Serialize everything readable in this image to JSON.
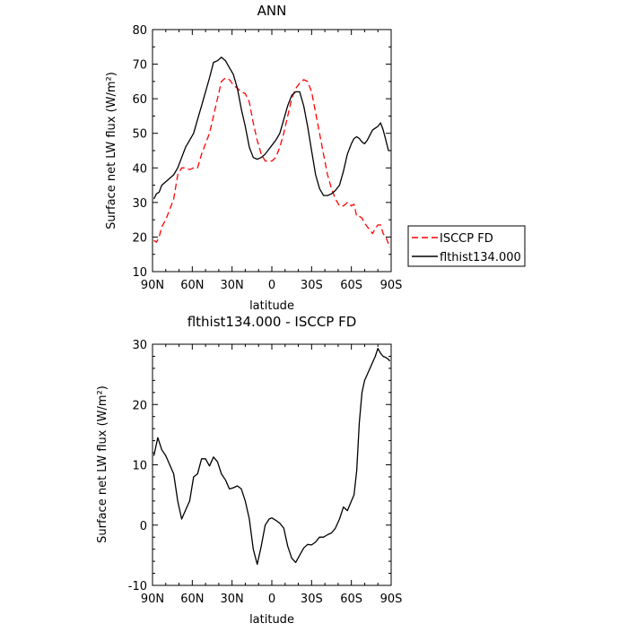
{
  "chart_data": [
    {
      "type": "line",
      "title": "ANN",
      "xlabel": "latitude",
      "ylabel": "Surface net LW flux (W/m²)",
      "xlim": [
        90,
        -90
      ],
      "ylim": [
        10,
        80
      ],
      "xticks": [
        "90N",
        "60N",
        "30N",
        "0",
        "30S",
        "60S",
        "90S"
      ],
      "yticks": [
        "10",
        "20",
        "30",
        "40",
        "50",
        "60",
        "70",
        "80"
      ],
      "legend_position": "right, outside plot",
      "series": [
        {
          "name": "ISCCP FD",
          "color": "#ff0000",
          "style": "dashed",
          "x": [
            89,
            87,
            85,
            83,
            80,
            77,
            74,
            71,
            68,
            65,
            62,
            59,
            56,
            53,
            50,
            47,
            44,
            41,
            38,
            35,
            32,
            29,
            26,
            23,
            20,
            17,
            14,
            11,
            8,
            5,
            2,
            0,
            -3,
            -6,
            -9,
            -12,
            -15,
            -18,
            -21,
            -24,
            -27,
            -30,
            -33,
            -36,
            -39,
            -42,
            -45,
            -48,
            -51,
            -54,
            -57,
            -60,
            -62,
            -64,
            -66,
            -68,
            -70,
            -72,
            -74,
            -76,
            -78,
            -80,
            -82,
            -84,
            -86,
            -88,
            -89
          ],
          "y": [
            19,
            18.5,
            20,
            23,
            25,
            28,
            31,
            38,
            40,
            40,
            39.5,
            40,
            40,
            44,
            47,
            50,
            55,
            60,
            65,
            66,
            65.5,
            64,
            63,
            62,
            61.5,
            59,
            53,
            48,
            44,
            42,
            42,
            42,
            43,
            46,
            50,
            55,
            60,
            63,
            64.5,
            65.5,
            65,
            62,
            56,
            50,
            44,
            38,
            34,
            31,
            29,
            29,
            30,
            29,
            29.5,
            26,
            26,
            25.5,
            24,
            23,
            22,
            21,
            22.5,
            23.5,
            23.5,
            21,
            20,
            18,
            17
          ]
        },
        {
          "name": "flthist134.000",
          "color": "#000000",
          "style": "solid",
          "x": [
            89,
            87,
            85,
            83,
            80,
            77,
            74,
            71,
            68,
            65,
            62,
            59,
            56,
            53,
            50,
            47,
            44,
            41,
            38,
            35,
            32,
            29,
            26,
            23,
            20,
            17,
            14,
            11,
            8,
            5,
            2,
            0,
            -3,
            -6,
            -9,
            -12,
            -15,
            -18,
            -21,
            -24,
            -27,
            -30,
            -33,
            -36,
            -39,
            -42,
            -45,
            -48,
            -51,
            -54,
            -57,
            -60,
            -62,
            -64,
            -66,
            -68,
            -70,
            -72,
            -74,
            -76,
            -78,
            -80,
            -82,
            -84,
            -86,
            -88,
            -89
          ],
          "y": [
            31,
            32.5,
            33,
            35,
            36,
            37,
            38,
            40,
            43,
            46,
            48,
            50,
            54,
            58,
            62,
            66,
            70.5,
            71,
            72,
            71,
            69,
            67,
            63,
            57,
            52,
            46,
            43,
            42.5,
            43,
            44,
            45.5,
            46.5,
            48,
            50,
            54,
            58,
            61,
            62,
            62,
            58,
            52,
            45,
            38,
            34,
            32,
            32,
            32.5,
            33.5,
            35,
            39,
            44,
            47,
            48.5,
            49,
            48.5,
            47.5,
            47,
            48,
            49.5,
            51,
            51.5,
            52,
            53,
            51,
            48,
            45,
            45
          ]
        }
      ]
    },
    {
      "type": "line",
      "title": "flthist134.000 - ISCCP FD",
      "xlabel": "latitude",
      "ylabel": "Surface net LW flux (W/m²)",
      "xlim": [
        90,
        -90
      ],
      "ylim": [
        -10,
        30
      ],
      "xticks": [
        "90N",
        "60N",
        "30N",
        "0",
        "30S",
        "60S",
        "90S"
      ],
      "yticks": [
        "-10",
        "0",
        "10",
        "20",
        "30"
      ],
      "series": [
        {
          "color": "#000000",
          "style": "solid",
          "x": [
            89,
            86,
            83,
            80,
            77,
            74,
            71,
            68,
            65,
            62,
            59,
            56,
            53,
            50,
            47,
            44,
            41,
            38,
            35,
            32,
            29,
            26,
            23,
            20,
            17,
            14,
            11,
            8,
            5,
            2,
            0,
            -3,
            -6,
            -9,
            -12,
            -15,
            -18,
            -21,
            -24,
            -27,
            -30,
            -33,
            -36,
            -39,
            -42,
            -45,
            -48,
            -51,
            -54,
            -57,
            -60,
            -62,
            -64,
            -66,
            -68,
            -70,
            -72,
            -74,
            -76,
            -78,
            -80,
            -82,
            -84,
            -86,
            -88,
            -89
          ],
          "y": [
            11.5,
            14.5,
            12.5,
            11.5,
            10,
            8.5,
            4,
            1,
            2.5,
            4,
            8,
            8.5,
            11,
            11,
            9.8,
            11.3,
            10.5,
            8.5,
            7.5,
            6,
            6.2,
            6.5,
            6,
            4,
            1,
            -4,
            -6.5,
            -3.5,
            0,
            1,
            1.2,
            0.8,
            0.3,
            -0.5,
            -3.5,
            -5.5,
            -6.2,
            -5,
            -3.8,
            -3.2,
            -3.3,
            -2.8,
            -2,
            -2,
            -1.6,
            -1.3,
            -0.5,
            1,
            3,
            2.4,
            4,
            5,
            9,
            17,
            22,
            24,
            25,
            26,
            27,
            28,
            29.3,
            28.5,
            28,
            27.8,
            27.5,
            27.2
          ]
        }
      ]
    }
  ]
}
